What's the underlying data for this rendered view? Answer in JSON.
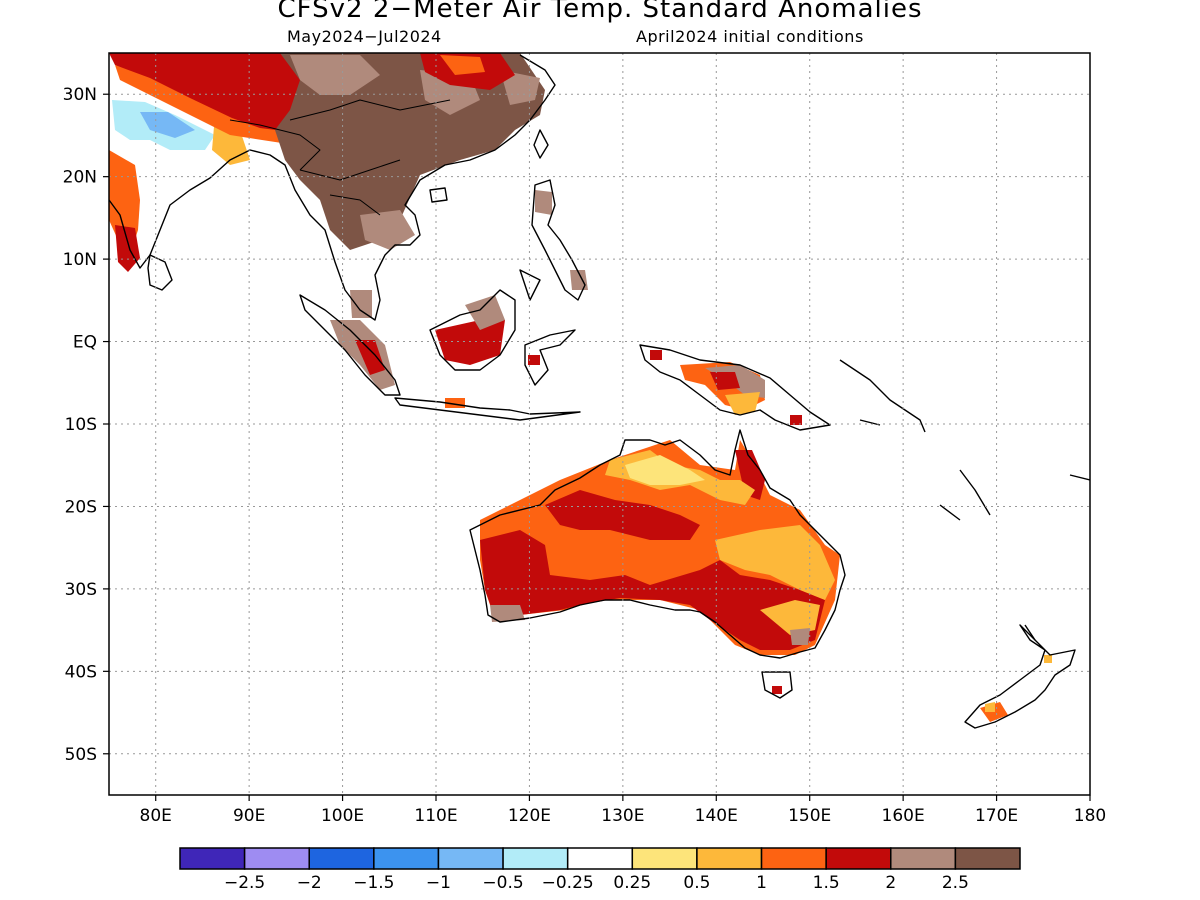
{
  "header": {
    "title": "CFSv2 2−Meter Air Temp. Standard Anomalies",
    "period": "May2024−Jul2024",
    "init": "April2024 initial conditions"
  },
  "map": {
    "lon_range": [
      75,
      180
    ],
    "lat_range": [
      -55,
      35
    ],
    "lat_labels": [
      {
        "lat": 30,
        "text": "30N"
      },
      {
        "lat": 20,
        "text": "20N"
      },
      {
        "lat": 10,
        "text": "10N"
      },
      {
        "lat": 0,
        "text": "EQ"
      },
      {
        "lat": -10,
        "text": "10S"
      },
      {
        "lat": -20,
        "text": "20S"
      },
      {
        "lat": -30,
        "text": "30S"
      },
      {
        "lat": -40,
        "text": "40S"
      },
      {
        "lat": -50,
        "text": "50S"
      }
    ],
    "lon_labels": [
      {
        "lon": 80,
        "text": "80E"
      },
      {
        "lon": 90,
        "text": "90E"
      },
      {
        "lon": 100,
        "text": "100E"
      },
      {
        "lon": 110,
        "text": "110E"
      },
      {
        "lon": 120,
        "text": "120E"
      },
      {
        "lon": 130,
        "text": "130E"
      },
      {
        "lon": 140,
        "text": "140E"
      },
      {
        "lon": 150,
        "text": "150E"
      },
      {
        "lon": 160,
        "text": "160E"
      },
      {
        "lon": 170,
        "text": "170E"
      },
      {
        "lon": 180,
        "text": "180"
      }
    ]
  },
  "legend": {
    "colors": [
      "#3f26b8",
      "#9e8cf2",
      "#1e65e0",
      "#3c93ef",
      "#76b8f5",
      "#b2ecf8",
      "#ffffff",
      "#fde47a",
      "#fdb83a",
      "#fd6312",
      "#c20a0a",
      "#b08a7c",
      "#7d5546"
    ],
    "labels": [
      "−2.5",
      "−2",
      "−1.5",
      "−1",
      "−0.5",
      "−0.25",
      "0.25",
      "0.5",
      "1",
      "1.5",
      "2",
      "2.5"
    ]
  }
}
